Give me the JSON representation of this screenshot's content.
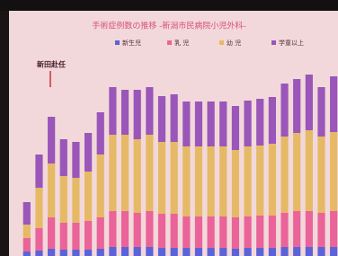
{
  "chart_data": {
    "type": "stacked-bar",
    "title": "手術症例数の推移 -新潟市民病院小児外科-",
    "annotation": "新田赴任",
    "categories": [
      null,
      null,
      null,
      null,
      null,
      null,
      null,
      null,
      null,
      null,
      null,
      null,
      null,
      null,
      null,
      null,
      null,
      null,
      null,
      null,
      null,
      null,
      null,
      null,
      null,
      null
    ],
    "ylim": [
      0,
      230
    ],
    "series": [
      {
        "name": "新生児",
        "color": "#5b63d6",
        "values": [
          5,
          6,
          8,
          7,
          7,
          7,
          8,
          10,
          10,
          10,
          10,
          9,
          9,
          9,
          9,
          9,
          9,
          8,
          9,
          9,
          9,
          10,
          10,
          10,
          10,
          10
        ]
      },
      {
        "name": "乳 児",
        "color": "#ea6399",
        "values": [
          15,
          25,
          35,
          30,
          30,
          32,
          35,
          40,
          40,
          38,
          40,
          38,
          38,
          35,
          35,
          35,
          35,
          35,
          35,
          36,
          36,
          38,
          40,
          40,
          38,
          40
        ]
      },
      {
        "name": "幼 児",
        "color": "#e6b966",
        "values": [
          15,
          45,
          60,
          52,
          50,
          55,
          70,
          85,
          85,
          82,
          85,
          80,
          80,
          78,
          78,
          78,
          78,
          75,
          78,
          78,
          80,
          85,
          87,
          90,
          85,
          88
        ]
      },
      {
        "name": "学童以上",
        "color": "#9a56b9",
        "values": [
          25,
          37,
          52,
          41,
          40,
          43,
          47,
          53,
          50,
          55,
          53,
          51,
          53,
          50,
          50,
          50,
          50,
          49,
          51,
          52,
          52,
          59,
          60,
          62,
          55,
          62
        ]
      }
    ]
  }
}
